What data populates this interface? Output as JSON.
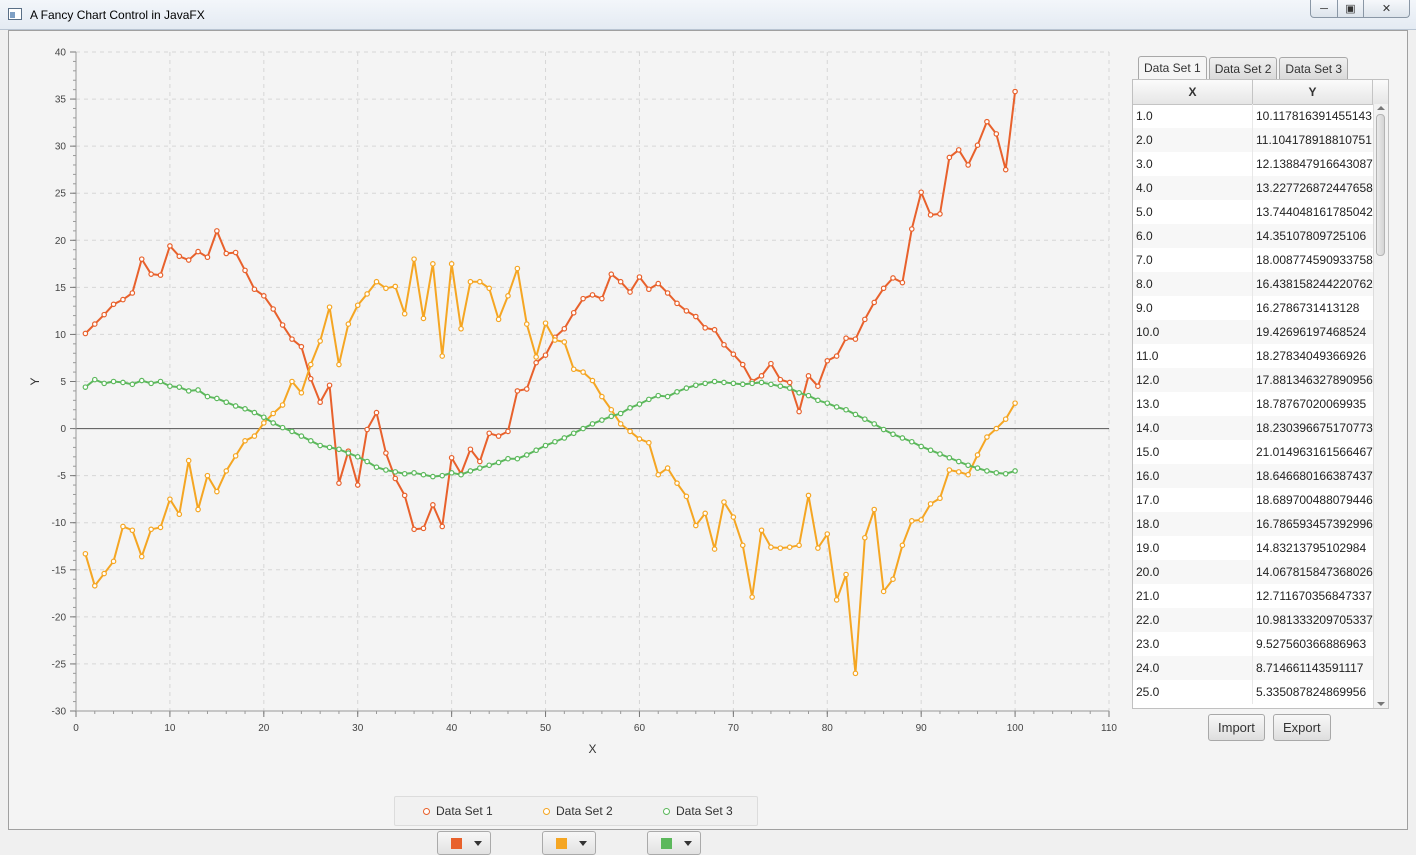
{
  "window": {
    "title": "A Fancy Chart Control in JavaFX",
    "app_icon": "window-icon"
  },
  "colors": {
    "set1": "#e8612c",
    "set2": "#f5a623",
    "set3": "#5cb85c"
  },
  "legend": {
    "items": [
      "Data Set 1",
      "Data Set 2",
      "Data Set 3"
    ]
  },
  "tabs": [
    "Data Set 1",
    "Data Set 2",
    "Data Set 3"
  ],
  "table": {
    "headers": [
      "X",
      "Y"
    ],
    "rows": [
      [
        "1.0",
        "10.117816391455143"
      ],
      [
        "2.0",
        "11.104178918810751"
      ],
      [
        "3.0",
        "12.138847916643087"
      ],
      [
        "4.0",
        "13.227726872447658"
      ],
      [
        "5.0",
        "13.744048161785042"
      ],
      [
        "6.0",
        "14.35107809725106"
      ],
      [
        "7.0",
        "18.008774590933758"
      ],
      [
        "8.0",
        "16.438158244220762"
      ],
      [
        "9.0",
        "16.2786731413128"
      ],
      [
        "10.0",
        "19.42696197468524"
      ],
      [
        "11.0",
        "18.27834049366926"
      ],
      [
        "12.0",
        "17.881346327890956"
      ],
      [
        "13.0",
        "18.78767020069935"
      ],
      [
        "14.0",
        "18.230396675170773"
      ],
      [
        "15.0",
        "21.014963161566467"
      ],
      [
        "16.0",
        "18.646680166387437"
      ],
      [
        "17.0",
        "18.689700488079446"
      ],
      [
        "18.0",
        "16.786593457392996"
      ],
      [
        "19.0",
        "14.83213795102984"
      ],
      [
        "20.0",
        "14.067815847368026"
      ],
      [
        "21.0",
        "12.711670356847337"
      ],
      [
        "22.0",
        "10.981333209705337"
      ],
      [
        "23.0",
        "9.527560366886963"
      ],
      [
        "24.0",
        "8.714661143591117"
      ],
      [
        "25.0",
        "5.335087824869956"
      ]
    ]
  },
  "buttons": {
    "import": "Import",
    "export": "Export"
  },
  "chart_data": {
    "type": "line",
    "xlabel": "X",
    "ylabel": "Y",
    "xlim": [
      0,
      110
    ],
    "ylim": [
      -30,
      40
    ],
    "x_ticks": [
      0,
      10,
      20,
      30,
      40,
      50,
      60,
      70,
      80,
      90,
      100,
      110
    ],
    "y_ticks": [
      -30,
      -25,
      -20,
      -15,
      -10,
      -5,
      0,
      5,
      10,
      15,
      20,
      25,
      30,
      35,
      40
    ],
    "grid": true,
    "legend_position": "bottom",
    "x": [
      1,
      2,
      3,
      4,
      5,
      6,
      7,
      8,
      9,
      10,
      11,
      12,
      13,
      14,
      15,
      16,
      17,
      18,
      19,
      20,
      21,
      22,
      23,
      24,
      25,
      26,
      27,
      28,
      29,
      30,
      31,
      32,
      33,
      34,
      35,
      36,
      37,
      38,
      39,
      40,
      41,
      42,
      43,
      44,
      45,
      46,
      47,
      48,
      49,
      50,
      51,
      52,
      53,
      54,
      55,
      56,
      57,
      58,
      59,
      60,
      61,
      62,
      63,
      64,
      65,
      66,
      67,
      68,
      69,
      70,
      71,
      72,
      73,
      74,
      75,
      76,
      77,
      78,
      79,
      80,
      81,
      82,
      83,
      84,
      85,
      86,
      87,
      88,
      89,
      90,
      91,
      92,
      93,
      94,
      95,
      96,
      97,
      98,
      99,
      100
    ],
    "series": [
      {
        "name": "Data Set 1",
        "values": [
          10.1,
          11.1,
          12.1,
          13.2,
          13.7,
          14.4,
          18.0,
          16.4,
          16.3,
          19.4,
          18.3,
          17.9,
          18.8,
          18.2,
          21.0,
          18.6,
          18.7,
          16.8,
          14.8,
          14.1,
          12.7,
          11.0,
          9.5,
          8.7,
          5.3,
          2.8,
          4.6,
          -5.8,
          -2.4,
          -6.0,
          -0.1,
          1.7,
          -2.6,
          -5.3,
          -7.1,
          -10.7,
          -10.6,
          -8.1,
          -10.4,
          -3.1,
          -4.8,
          -2.2,
          -3.5,
          -0.5,
          -0.8,
          -0.3,
          4.0,
          4.2,
          7.0,
          7.8,
          9.7,
          10.6,
          12.3,
          13.8,
          14.2,
          13.8,
          16.4,
          15.6,
          14.5,
          16.1,
          14.8,
          15.4,
          14.4,
          13.3,
          12.5,
          11.9,
          10.7,
          10.5,
          8.9,
          7.9,
          6.8,
          5.0,
          5.6,
          6.9,
          5.2,
          4.9,
          1.8,
          5.6,
          4.5,
          7.2,
          7.7,
          9.6,
          9.5,
          11.6,
          13.4,
          14.9,
          16.0,
          15.5,
          21.2,
          25.1,
          22.7,
          22.8,
          28.8,
          29.6,
          28.0,
          30.1,
          32.6,
          31.3,
          27.5,
          35.8
        ]
      },
      {
        "name": "Data Set 2",
        "values": [
          -13.3,
          -16.7,
          -15.4,
          -14.1,
          -10.4,
          -10.8,
          -13.6,
          -10.7,
          -10.5,
          -7.5,
          -9.1,
          -3.4,
          -8.6,
          -5.0,
          -6.7,
          -4.5,
          -2.9,
          -1.3,
          -0.8,
          0.6,
          1.6,
          2.5,
          5.0,
          3.8,
          6.8,
          9.3,
          12.9,
          6.8,
          11.1,
          13.1,
          14.3,
          15.6,
          14.9,
          15.1,
          12.2,
          18.0,
          11.7,
          17.5,
          7.7,
          17.5,
          10.6,
          15.6,
          15.6,
          14.9,
          11.6,
          14.1,
          17.0,
          11.1,
          7.6,
          11.2,
          9.4,
          9.2,
          6.3,
          6.0,
          5.1,
          3.4,
          2.0,
          0.5,
          -0.3,
          -1.1,
          -1.5,
          -4.9,
          -4.2,
          -5.8,
          -7.2,
          -10.3,
          -9.0,
          -12.8,
          -7.8,
          -9.4,
          -12.4,
          -17.9,
          -10.8,
          -12.6,
          -12.7,
          -12.6,
          -12.4,
          -7.1,
          -12.7,
          -11.2,
          -18.2,
          -15.5,
          -26.0,
          -11.6,
          -8.6,
          -17.3,
          -16.0,
          -12.4,
          -9.8,
          -9.7,
          -8.0,
          -7.4,
          -4.4,
          -4.6,
          -4.9,
          -2.8,
          -0.9,
          0.0,
          1.0,
          2.7
        ]
      },
      {
        "name": "Data Set 3",
        "values": [
          4.4,
          5.2,
          4.8,
          5.0,
          4.9,
          4.7,
          5.1,
          4.8,
          5.0,
          4.5,
          4.4,
          4.0,
          4.1,
          3.4,
          3.2,
          2.8,
          2.4,
          2.1,
          1.7,
          1.2,
          0.6,
          0.1,
          -0.3,
          -0.8,
          -1.3,
          -1.8,
          -2.0,
          -2.2,
          -2.6,
          -3.0,
          -3.5,
          -4.1,
          -4.4,
          -4.6,
          -4.8,
          -4.7,
          -4.9,
          -5.1,
          -5.0,
          -4.7,
          -4.9,
          -4.5,
          -4.2,
          -3.9,
          -3.6,
          -3.2,
          -3.2,
          -2.8,
          -2.3,
          -1.8,
          -1.4,
          -1.0,
          -0.5,
          0.0,
          0.5,
          0.9,
          1.3,
          1.6,
          2.2,
          2.6,
          3.1,
          3.5,
          3.4,
          3.9,
          4.3,
          4.6,
          4.8,
          5.0,
          4.9,
          4.8,
          4.7,
          4.8,
          4.9,
          4.7,
          4.5,
          4.3,
          3.8,
          3.5,
          3.0,
          2.7,
          2.3,
          2.0,
          1.5,
          1.0,
          0.5,
          -0.1,
          -0.6,
          -1.0,
          -1.4,
          -1.9,
          -2.3,
          -2.7,
          -3.1,
          -3.5,
          -3.9,
          -4.2,
          -4.5,
          -4.7,
          -4.8,
          -4.5
        ]
      }
    ]
  }
}
